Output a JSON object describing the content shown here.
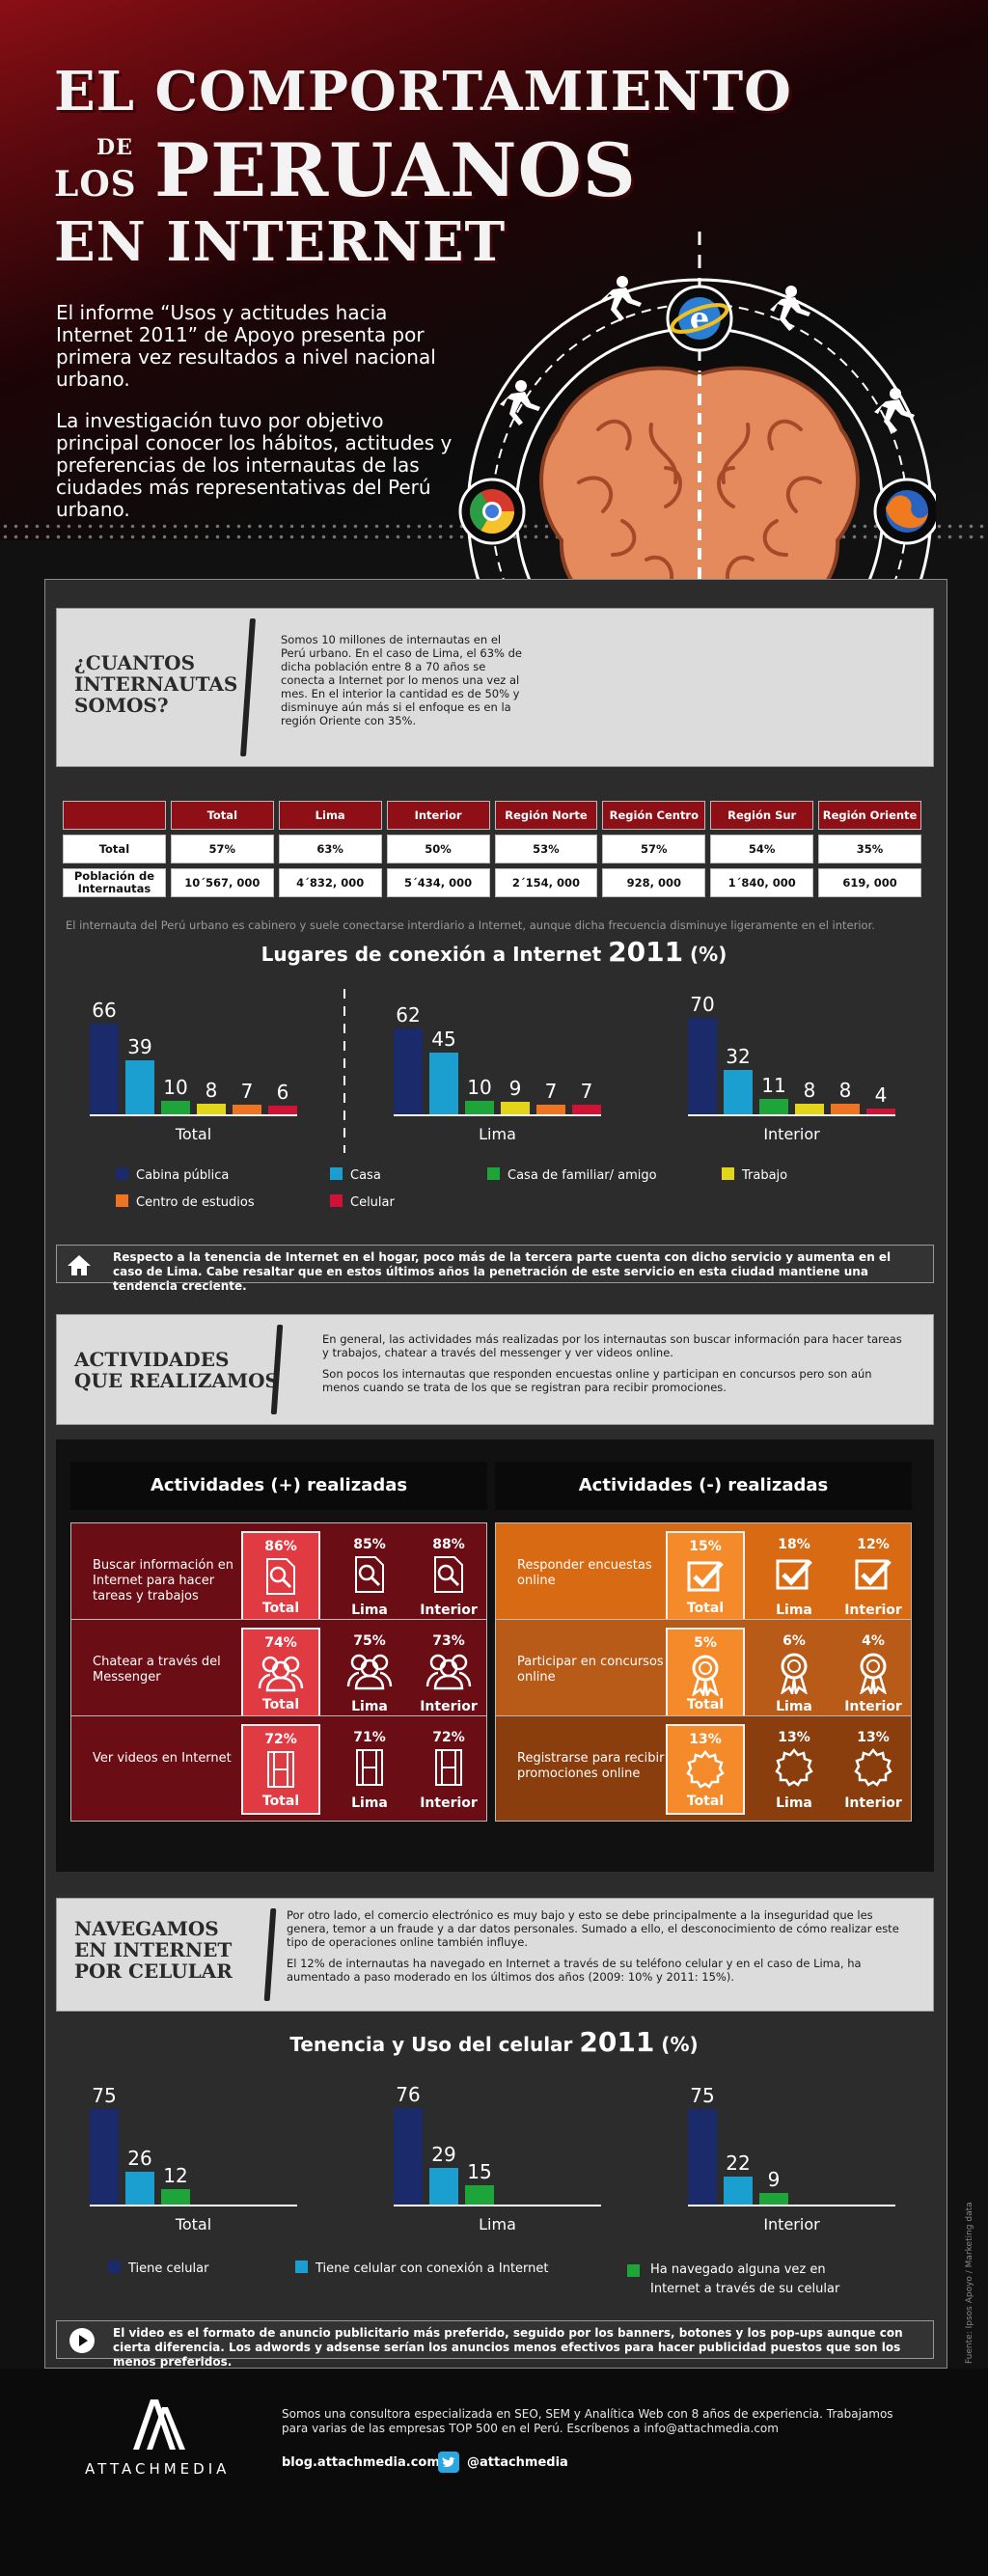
{
  "hero": {
    "title_line1": "EL COMPORTAMIENTO",
    "title_de": "DE",
    "title_los": "LOS",
    "title_peruanos": "PERUANOS",
    "title_line3": "EN INTERNET",
    "intro_p1": "El informe “Usos y actitudes hacia Internet 2011” de Apoyo presenta por primera vez resultados a nivel nacional urbano.",
    "intro_p2": "La investigación tuvo por objetivo principal conocer los hábitos, actitudes y preferencias de los internautas de las ciudades más representativas del Perú urbano.",
    "browsers": [
      "ie-icon",
      "chrome-icon",
      "firefox-icon",
      "safari-icon"
    ]
  },
  "section1": {
    "title_l1": "¿CUANTOS",
    "title_l2": "INTERNAUTAS",
    "title_l3": "SOMOS?",
    "text": "Somos 10 millones de internautas en el Perú urbano. En el caso de Lima, el 63% de dicha población entre 8 a 70 años se conecta a Internet por lo menos una vez al mes. En el interior la cantidad es de 50% y disminuye aún más si el enfoque es en la región Oriente con 35%.",
    "table": {
      "headers": [
        "Total",
        "Lima",
        "Interior",
        "Región Norte",
        "Región Centro",
        "Región Sur",
        "Región Oriente"
      ],
      "rows": [
        {
          "label": "Total",
          "values": [
            "57%",
            "63%",
            "50%",
            "53%",
            "57%",
            "54%",
            "35%"
          ]
        },
        {
          "label": "Población de Internautas",
          "values": [
            "10´567, 000",
            "4´832, 000",
            "5´434, 000",
            "2´154, 000",
            "928, 000",
            "1´840, 000",
            "619, 000"
          ]
        }
      ]
    },
    "note": "El internauta del Perú urbano es cabinero y suele conectarse interdiario a Internet, aunque dicha frecuencia disminuye ligeramente en el interior.",
    "info": "Respecto a la tenencia de Internet en el hogar, poco más de la tercera parte cuenta con dicho servicio y aumenta en el caso de Lima. Cabe resaltar que en estos últimos años la penetración de este servicio en esta ciudad mantiene una tendencia creciente."
  },
  "chart_data": [
    {
      "type": "bar",
      "title": "Lugares de conexión a Internet",
      "title_year": "2011",
      "title_unit": "(%)",
      "categories": [
        "Total",
        "Lima",
        "Interior"
      ],
      "series": [
        {
          "name": "Cabina pública",
          "color": "#1b2a6b",
          "values": [
            66,
            62,
            70
          ]
        },
        {
          "name": "Casa",
          "color": "#1b9fd1",
          "values": [
            39,
            45,
            32
          ]
        },
        {
          "name": "Casa de familiar/ amigo",
          "color": "#1ea53a",
          "values": [
            10,
            10,
            11
          ]
        },
        {
          "name": "Trabajo",
          "color": "#e3d61a",
          "values": [
            8,
            9,
            8
          ]
        },
        {
          "name": "Centro de estudios",
          "color": "#ef7422",
          "values": [
            7,
            7,
            8
          ]
        },
        {
          "name": "Celular",
          "color": "#d11135",
          "values": [
            6,
            7,
            4
          ]
        }
      ],
      "ylim": [
        0,
        70
      ]
    },
    {
      "type": "bar",
      "title": "Tenencia y Uso del celular",
      "title_year": "2011",
      "title_unit": "(%)",
      "categories": [
        "Total",
        "Lima",
        "Interior"
      ],
      "series": [
        {
          "name": "Tiene celular",
          "color": "#1b2a6b",
          "values": [
            75,
            76,
            75
          ]
        },
        {
          "name": "Tiene celular con conexión a Internet",
          "color": "#1b9fd1",
          "values": [
            26,
            29,
            22
          ]
        },
        {
          "name": "Ha navegado alguna vez en Internet a través de su celular",
          "color": "#1ea53a",
          "values": [
            12,
            15,
            9
          ]
        }
      ],
      "ylim": [
        0,
        76
      ]
    }
  ],
  "section2": {
    "title_l1": "ACTIVIDADES",
    "title_l2": "QUE REALIZAMOS",
    "text_p1": "En general, las actividades más realizadas por los internautas son buscar información para hacer tareas y trabajos, chatear a través del messenger y ver videos online.",
    "text_p2": "Son pocos los internautas que responden encuestas online y participan en concursos pero son aún menos cuando se trata de los que se registran para recibir promociones.",
    "plus_header": "Actividades (+) realizadas",
    "minus_header": "Actividades (-) realizadas",
    "cols": [
      "Total",
      "Lima",
      "Interior"
    ],
    "plus": [
      {
        "label": "Buscar información en Internet para hacer tareas y trabajos",
        "icon": "search-icon",
        "values": [
          "86%",
          "85%",
          "88%"
        ]
      },
      {
        "label": "Chatear a través del Messenger",
        "icon": "users-icon",
        "values": [
          "74%",
          "75%",
          "73%"
        ]
      },
      {
        "label": "Ver videos en Internet",
        "icon": "film-icon",
        "values": [
          "72%",
          "71%",
          "72%"
        ]
      }
    ],
    "minus": [
      {
        "label": "Responder encuestas online",
        "icon": "checkbox-icon",
        "values": [
          "15%",
          "18%",
          "12%"
        ]
      },
      {
        "label": "Participar en concursos online",
        "icon": "ribbon-icon",
        "values": [
          "5%",
          "6%",
          "4%"
        ]
      },
      {
        "label": "Registrarse para recibir promociones online",
        "icon": "badge-icon",
        "values": [
          "13%",
          "13%",
          "13%"
        ]
      }
    ]
  },
  "section3": {
    "title_l1": "NAVEGAMOS",
    "title_l2": "EN INTERNET",
    "title_l3": "POR CELULAR",
    "text_p1": "Por otro lado, el comercio electrónico es muy bajo y esto se debe principalmente a la inseguridad que les genera, temor a un fraude y a dar datos personales. Sumado a ello, el desconocimiento de cómo realizar este tipo de operaciones online también influye.",
    "text_p2": "El 12% de internautas ha navegado en Internet a través de su teléfono celular y en el caso de Lima, ha aumentado a paso moderado en los últimos dos años (2009: 10% y 2011: 15%).",
    "info": "El video es el formato de anuncio publicitario más preferido, seguido por los banners, botones y los pop-ups aunque con cierta diferencia. Los adwords y adsense serían los anuncios menos efectivos para hacer publicidad puestos que son los menos preferidos."
  },
  "side_note": "Fuente: Ipsos Apoyo / Marketing data",
  "footer": {
    "brand": "ATTACHMEDIA",
    "text": "Somos una consultora especializada en SEO, SEM y Analítica Web con 8 años de experiencia. Trabajamos para varias de las empresas TOP 500 en el Perú. Escríbenos a info@attachmedia.com",
    "blog": "blog.attachmedia.com",
    "twitter": "@attachmedia"
  }
}
